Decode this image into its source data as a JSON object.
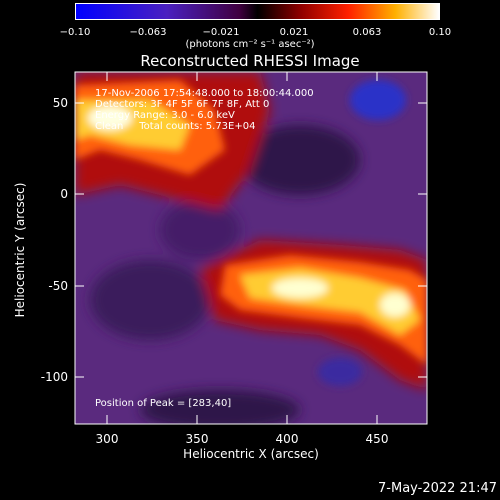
{
  "title": "Reconstructed RHESSI Image",
  "colorbar": {
    "ticks": [
      "−0.10",
      "−0.063",
      "−0.021",
      "0.021",
      "0.063",
      "0.10"
    ],
    "unit": "(photons cm⁻² s⁻¹ asec⁻²)",
    "range": [
      -0.1,
      0.1
    ]
  },
  "annotations": {
    "time": "17-Nov-2006 17:54:48.000 to 18:00:44.000",
    "detectors": "Detectors: 3F 4F 5F 6F 7F 8F, Att 0",
    "energy": "Energy Range: 3.0 - 6.0 keV",
    "counts": "Clean     Total counts: 5.73E+04",
    "peak": "Position of Peak = [283,40]"
  },
  "timestamp": "7-May-2022 21:47",
  "chart_data": {
    "type": "heatmap",
    "title": "Reconstructed RHESSI Image",
    "xlabel": "Heliocentric X (arcsec)",
    "ylabel": "Heliocentric Y (arcsec)",
    "xlim": [
      282,
      478
    ],
    "ylim": [
      -125,
      67
    ],
    "xticks": [
      300,
      350,
      400,
      450
    ],
    "yticks": [
      50,
      0,
      -50,
      -100
    ],
    "colormap": "red-temperature",
    "color_range": [
      -0.1,
      0.1
    ],
    "features": [
      {
        "name": "upper-left bright band",
        "x_range": [
          282,
          345
        ],
        "y_range": [
          0,
          65
        ],
        "peak_value": 0.1
      },
      {
        "name": "lower-right bright band",
        "x_range": [
          350,
          478
        ],
        "y_range": [
          -90,
          -25
        ],
        "peak_value": 0.1
      },
      {
        "name": "upper-right negative patch",
        "x": 452,
        "y": 48,
        "value": -0.05
      }
    ],
    "peak_position": [
      283,
      40
    ]
  }
}
